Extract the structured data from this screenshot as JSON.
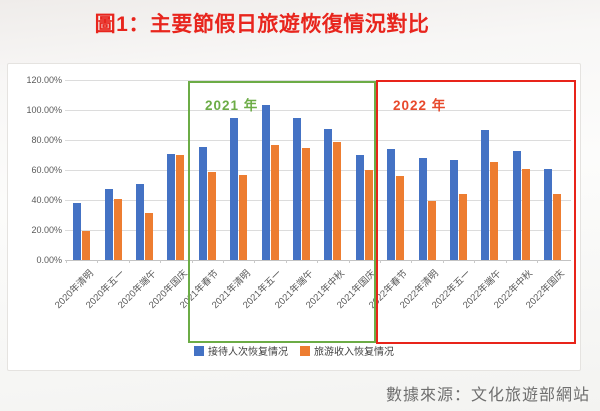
{
  "title": "圖1：主要節假日旅遊恢復情況對比",
  "source": "數據來源：文化旅遊部網站",
  "annotations": {
    "box_2021_label": "2021 年",
    "box_2022_label": "2022 年"
  },
  "legend": [
    {
      "key": "trips",
      "label": "接待人次恢复情况",
      "color": "#4472C4"
    },
    {
      "key": "revenue",
      "label": "旅游收入恢复情况",
      "color": "#ED7D31"
    }
  ],
  "colors": {
    "series_blue": "#4472C4",
    "series_orange": "#ED7D31",
    "box_2021_green": "#6CAC46",
    "box_2022_red": "#E8241A",
    "label_2022_red": "#E8492C",
    "title_red": "#E8251D",
    "axis_text": "#595959",
    "gridline": "#DCDCDC",
    "source_text": "#6F6F6F"
  },
  "chart_data": {
    "type": "bar",
    "title": "圖1：主要節假日旅遊恢復情況對比",
    "categories": [
      "2020年清明",
      "2020年五一",
      "2020年端午",
      "2020年国庆",
      "2021年春节",
      "2021年清明",
      "2021年五一",
      "2021年端午",
      "2021年中秋",
      "2021年国庆",
      "2022年春节",
      "2022年清明",
      "2022年五一",
      "2022年端午",
      "2022年中秋",
      "2022年国庆"
    ],
    "series": [
      {
        "key": "trips",
        "name": "接待人次恢复情况",
        "color": "#4472C4",
        "values": [
          38.3,
          47.2,
          50.9,
          71.0,
          75.3,
          94.5,
          103.2,
          94.5,
          87.2,
          70.1,
          73.9,
          68.0,
          66.8,
          86.8,
          72.6,
          60.7
        ]
      },
      {
        "key": "revenue",
        "name": "旅游收入恢复情况",
        "color": "#ED7D31",
        "values": [
          19.2,
          40.4,
          31.2,
          69.9,
          58.6,
          56.7,
          77.0,
          74.8,
          78.6,
          59.9,
          56.3,
          39.2,
          44.0,
          65.6,
          60.6,
          44.2
        ]
      }
    ],
    "ylabel": "",
    "xlabel": "",
    "ylim": [
      0,
      120
    ],
    "ytick_step": 20,
    "ytick_labels": [
      "0.00%",
      "20.00%",
      "40.00%",
      "60.00%",
      "80.00%",
      "100.00%",
      "120.00%"
    ],
    "unit": "percent",
    "grid": true,
    "legend_position": "bottom",
    "annotation_groups": [
      {
        "label": "2021 年",
        "categories_from": "2021年春节",
        "categories_to": "2021年国庆",
        "box_color": "#6CAC46"
      },
      {
        "label": "2022 年",
        "categories_from": "2022年春节",
        "categories_to": "2022年国庆",
        "box_color": "#E8241A"
      }
    ]
  }
}
